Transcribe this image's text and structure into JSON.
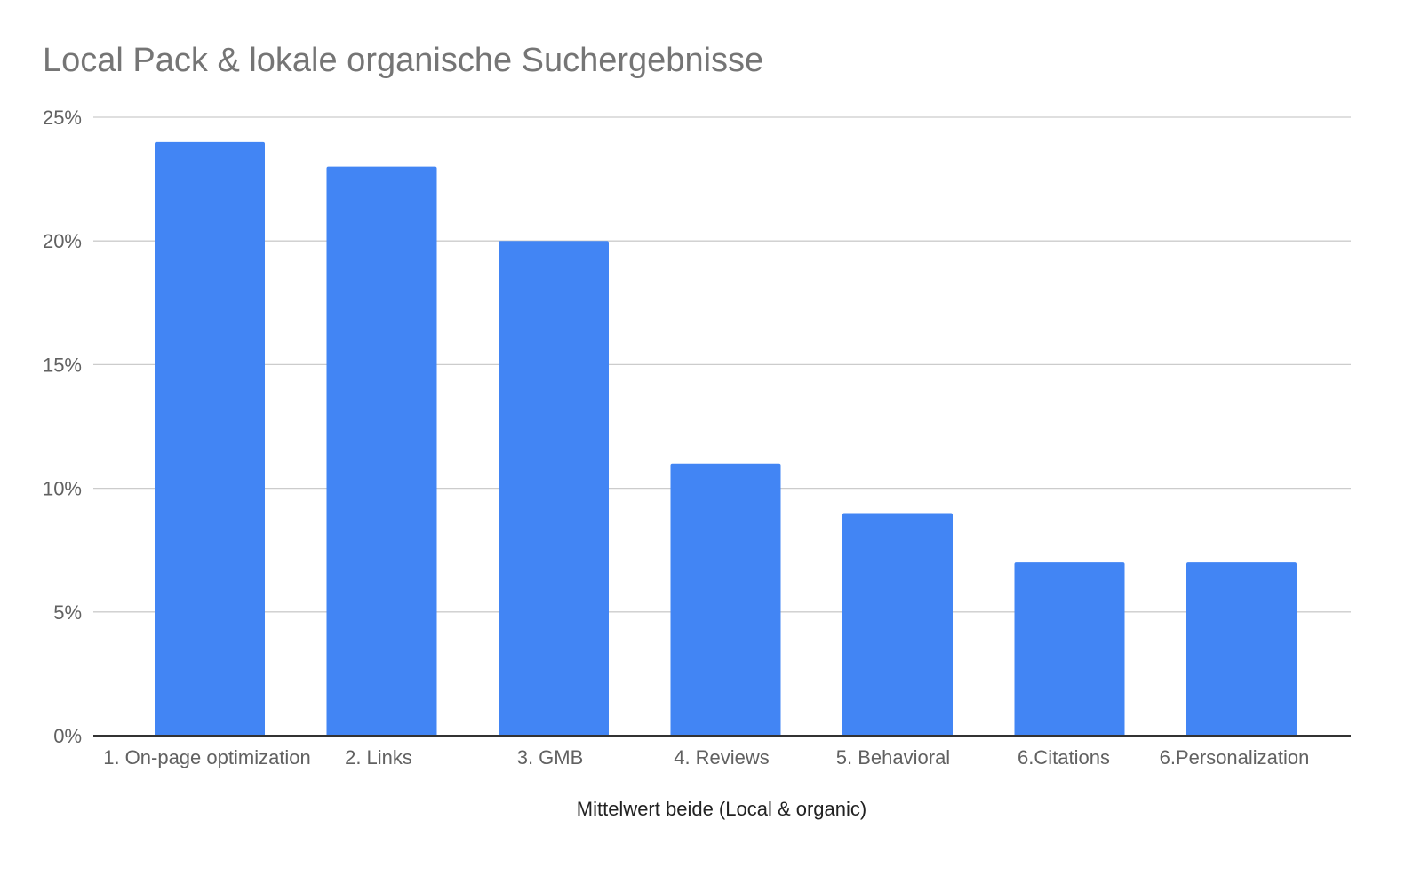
{
  "chart_data": {
    "type": "bar",
    "title": "Local Pack & lokale organische Suchergebnisse",
    "xlabel": "Mittelwert beide (Local & organic)",
    "ylabel": "",
    "categories": [
      "1. On-page optimization",
      "2. Links",
      "3. GMB",
      "4. Reviews",
      "5. Behavioral",
      "6.Citations",
      "6.Personalization"
    ],
    "values": [
      24,
      23,
      20,
      11,
      9,
      7,
      7
    ],
    "ylim": [
      0,
      25
    ],
    "y_ticks": [
      "0%",
      "5%",
      "10%",
      "15%",
      "20%",
      "25%"
    ],
    "y_tick_values": [
      0,
      5,
      10,
      15,
      20,
      25
    ],
    "grid": true,
    "legend": "none",
    "colors": {
      "bar": "#4285f4",
      "gridline": "#cccccc",
      "axis": "#333333"
    }
  }
}
